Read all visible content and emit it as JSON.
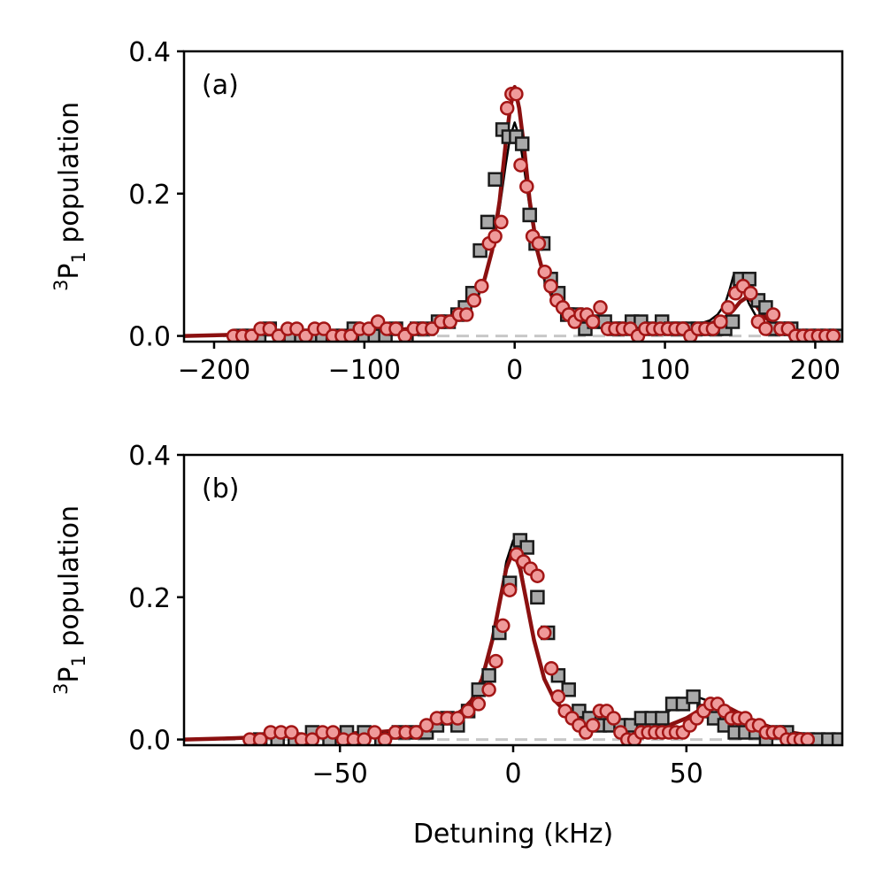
{
  "colors": {
    "red_fill": "#ef9a9a",
    "red_edge": "#a31515",
    "red_line": "#8b1010",
    "gray_fill": "#a9a9a9",
    "gray_edge": "#1a1a1a",
    "black_line": "#000000",
    "baseline": "#c8c8c8"
  },
  "chart_data": [
    {
      "type": "scatter",
      "panel_label": "(a)",
      "ylabel": "3P1 population",
      "ylabel_parts": {
        "sup": "3",
        "main": "P",
        "sub": "1",
        "rest": " population"
      },
      "xlabel": "",
      "xlim": [
        -220,
        218
      ],
      "ylim": [
        -0.008,
        0.4
      ],
      "xticks": [
        -200,
        -100,
        0,
        100,
        200
      ],
      "xtick_labels": [
        "−200",
        "−100",
        "0",
        "100",
        "200"
      ],
      "yticks": [
        0.0,
        0.2,
        0.4
      ],
      "ytick_labels": [
        "0.0",
        "0.2",
        "0.4"
      ],
      "baseline_y": 0.0,
      "series": [
        {
          "name": "gray squares",
          "marker": "square",
          "x": [
            -182,
            -176,
            -170,
            -163,
            -156,
            -149,
            -142,
            -135,
            -128,
            -121,
            -114,
            -107,
            -100,
            -93,
            -86,
            -79,
            -72,
            -65,
            -58,
            -51,
            -44,
            -38,
            -33,
            -28,
            -23,
            -18,
            -13,
            -8,
            -4,
            1,
            5,
            10,
            14,
            19,
            24,
            29,
            35,
            41,
            47,
            53,
            60,
            66,
            72,
            78,
            84,
            91,
            98,
            104,
            110,
            116,
            122,
            128,
            134,
            140,
            145,
            150,
            156,
            162,
            167,
            172,
            178,
            184,
            190,
            196,
            202,
            208,
            214
          ],
          "y": [
            0.0,
            0.0,
            0.0,
            0.01,
            0.0,
            0.0,
            0.0,
            0.0,
            0.0,
            0.0,
            0.0,
            0.01,
            0.0,
            0.0,
            0.0,
            0.01,
            0.0,
            0.01,
            0.01,
            0.02,
            0.02,
            0.03,
            0.04,
            0.06,
            0.12,
            0.16,
            0.22,
            0.29,
            0.28,
            0.28,
            0.27,
            0.17,
            0.13,
            0.13,
            0.08,
            0.06,
            0.03,
            0.03,
            0.01,
            0.02,
            0.02,
            0.01,
            0.01,
            0.02,
            0.02,
            0.01,
            0.02,
            0.01,
            0.01,
            0.01,
            0.01,
            0.01,
            0.01,
            0.01,
            0.02,
            0.08,
            0.08,
            0.05,
            0.04,
            0.01,
            0.01,
            0.01,
            0.0,
            0.0,
            0.0,
            0.0,
            0.0
          ]
        },
        {
          "name": "red circles",
          "marker": "circle",
          "x": [
            -187,
            -181,
            -175,
            -169,
            -163,
            -157,
            -151,
            -145,
            -139,
            -133,
            -127,
            -121,
            -115,
            -109,
            -103,
            -97,
            -91,
            -85,
            -79,
            -73,
            -67,
            -61,
            -55,
            -49,
            -43,
            -37,
            -32,
            -27,
            -22,
            -17,
            -13,
            -9,
            -5,
            -2,
            1,
            4,
            8,
            12,
            16,
            20,
            24,
            28,
            32,
            36,
            40,
            44,
            48,
            52,
            57,
            62,
            67,
            72,
            77,
            82,
            87,
            92,
            97,
            102,
            107,
            112,
            117,
            122,
            127,
            132,
            137,
            142,
            147,
            152,
            157,
            162,
            167,
            172,
            177,
            182,
            187,
            192,
            197,
            202,
            207,
            212
          ],
          "y": [
            0.0,
            0.0,
            0.0,
            0.01,
            0.01,
            0.0,
            0.01,
            0.01,
            0.0,
            0.01,
            0.01,
            0.0,
            0.0,
            0.0,
            0.01,
            0.01,
            0.02,
            0.01,
            0.01,
            0.0,
            0.01,
            0.01,
            0.01,
            0.02,
            0.02,
            0.03,
            0.03,
            0.05,
            0.07,
            0.13,
            0.14,
            0.16,
            0.32,
            0.34,
            0.34,
            0.24,
            0.21,
            0.14,
            0.13,
            0.09,
            0.07,
            0.05,
            0.04,
            0.03,
            0.02,
            0.03,
            0.03,
            0.02,
            0.04,
            0.01,
            0.01,
            0.01,
            0.01,
            0.0,
            0.01,
            0.01,
            0.01,
            0.01,
            0.01,
            0.01,
            0.0,
            0.01,
            0.01,
            0.01,
            0.02,
            0.04,
            0.06,
            0.07,
            0.06,
            0.02,
            0.01,
            0.03,
            0.01,
            0.01,
            0.0,
            0.0,
            0.0,
            0.0,
            0.0,
            0.0
          ]
        }
      ],
      "fits": [
        {
          "name": "black fit",
          "x": [
            -220,
            -180,
            -150,
            -120,
            -100,
            -80,
            -60,
            -50,
            -40,
            -30,
            -25,
            -20,
            -15,
            -10,
            -6,
            -3,
            0,
            3,
            6,
            10,
            15,
            20,
            25,
            30,
            40,
            50,
            60,
            80,
            100,
            110,
            120,
            130,
            135,
            140,
            143,
            146,
            149,
            152,
            156,
            160,
            165,
            170,
            175,
            180,
            190,
            200,
            210,
            218
          ],
          "y": [
            0.0,
            0.002,
            0.003,
            0.005,
            0.006,
            0.008,
            0.012,
            0.017,
            0.025,
            0.04,
            0.055,
            0.08,
            0.12,
            0.18,
            0.24,
            0.28,
            0.3,
            0.28,
            0.24,
            0.18,
            0.12,
            0.08,
            0.055,
            0.04,
            0.025,
            0.017,
            0.014,
            0.012,
            0.011,
            0.012,
            0.015,
            0.022,
            0.03,
            0.045,
            0.065,
            0.088,
            0.085,
            0.065,
            0.045,
            0.03,
            0.02,
            0.014,
            0.01,
            0.007,
            0.005,
            0.003,
            0.002,
            0.002
          ]
        },
        {
          "name": "red fit",
          "x": [
            -220,
            -180,
            -150,
            -120,
            -100,
            -80,
            -60,
            -50,
            -40,
            -30,
            -25,
            -20,
            -15,
            -10,
            -6,
            -3,
            0,
            3,
            6,
            10,
            15,
            20,
            25,
            30,
            40,
            50,
            60,
            80,
            100,
            120,
            130,
            140,
            145,
            150,
            155,
            160,
            165,
            170,
            175,
            180,
            190,
            200,
            210,
            218
          ],
          "y": [
            0.0,
            0.002,
            0.003,
            0.005,
            0.006,
            0.008,
            0.012,
            0.017,
            0.025,
            0.04,
            0.055,
            0.08,
            0.12,
            0.19,
            0.27,
            0.32,
            0.35,
            0.32,
            0.27,
            0.19,
            0.12,
            0.08,
            0.055,
            0.04,
            0.025,
            0.017,
            0.014,
            0.012,
            0.011,
            0.013,
            0.017,
            0.026,
            0.035,
            0.048,
            0.055,
            0.045,
            0.03,
            0.02,
            0.013,
            0.009,
            0.005,
            0.003,
            0.002,
            0.002
          ]
        }
      ]
    },
    {
      "type": "scatter",
      "panel_label": "(b)",
      "ylabel": "3P1 population",
      "ylabel_parts": {
        "sup": "3",
        "main": "P",
        "sub": "1",
        "rest": " population"
      },
      "xlabel": "Detuning (kHz)",
      "xlim": [
        -95,
        95
      ],
      "ylim": [
        -0.008,
        0.4
      ],
      "xticks": [
        -50,
        0,
        50
      ],
      "xtick_labels": [
        "−50",
        "0",
        "50"
      ],
      "yticks": [
        0.0,
        0.2,
        0.4
      ],
      "ytick_labels": [
        "0.0",
        "0.2",
        "0.4"
      ],
      "baseline_y": 0.0,
      "series": [
        {
          "name": "gray squares",
          "marker": "square",
          "x": [
            -73,
            -68,
            -63,
            -58,
            -53,
            -48,
            -43,
            -38,
            -33,
            -29,
            -25,
            -22,
            -19,
            -16,
            -13,
            -10,
            -7,
            -4,
            -1,
            2,
            4,
            7,
            10,
            13,
            16,
            19,
            22,
            25,
            28,
            31,
            34,
            37,
            40,
            43,
            46,
            49,
            52,
            55,
            58,
            61,
            64,
            67,
            70,
            73,
            76,
            79,
            82,
            85,
            88,
            91,
            94
          ],
          "y": [
            0.0,
            0.0,
            0.0,
            0.01,
            0.0,
            0.01,
            0.01,
            0.0,
            0.01,
            0.01,
            0.01,
            0.02,
            0.03,
            0.02,
            0.04,
            0.07,
            0.09,
            0.15,
            0.22,
            0.28,
            0.27,
            0.2,
            0.15,
            0.09,
            0.07,
            0.04,
            0.03,
            0.02,
            0.02,
            0.02,
            0.02,
            0.03,
            0.03,
            0.03,
            0.05,
            0.05,
            0.06,
            0.04,
            0.03,
            0.02,
            0.01,
            0.01,
            0.01,
            0.0,
            0.01,
            0.01,
            0.0,
            0.0,
            0.0,
            0.0,
            0.0
          ]
        },
        {
          "name": "red circles",
          "marker": "circle",
          "x": [
            -76,
            -73,
            -70,
            -67,
            -64,
            -61,
            -58,
            -55,
            -52,
            -49,
            -46,
            -43,
            -40,
            -37,
            -34,
            -31,
            -28,
            -25,
            -22,
            -19,
            -16,
            -13,
            -10,
            -7,
            -5,
            -3,
            -1,
            1,
            3,
            5,
            7,
            9,
            11,
            13,
            15,
            17,
            19,
            21,
            23,
            25,
            27,
            29,
            31,
            33,
            35,
            37,
            39,
            41,
            43,
            45,
            47,
            49,
            51,
            53,
            55,
            57,
            59,
            61,
            63,
            65,
            67,
            69,
            71,
            73,
            75,
            77,
            79,
            81,
            83,
            85
          ],
          "y": [
            0.0,
            0.0,
            0.01,
            0.01,
            0.01,
            0.0,
            0.0,
            0.01,
            0.01,
            0.0,
            0.0,
            0.0,
            0.01,
            0.0,
            0.01,
            0.01,
            0.01,
            0.02,
            0.03,
            0.03,
            0.03,
            0.04,
            0.05,
            0.07,
            0.11,
            0.16,
            0.21,
            0.26,
            0.25,
            0.24,
            0.23,
            0.15,
            0.1,
            0.06,
            0.04,
            0.03,
            0.02,
            0.01,
            0.02,
            0.04,
            0.04,
            0.03,
            0.01,
            0.0,
            0.0,
            0.01,
            0.01,
            0.01,
            0.01,
            0.01,
            0.01,
            0.01,
            0.02,
            0.03,
            0.04,
            0.05,
            0.05,
            0.04,
            0.03,
            0.03,
            0.03,
            0.02,
            0.02,
            0.01,
            0.01,
            0.01,
            0.0,
            0.0,
            0.0,
            0.0
          ]
        }
      ],
      "fits": [
        {
          "name": "black fit",
          "x": [
            -95,
            -80,
            -70,
            -60,
            -50,
            -40,
            -30,
            -25,
            -20,
            -15,
            -12,
            -9,
            -6,
            -4,
            -2,
            0,
            2,
            4,
            6,
            9,
            12,
            15,
            20,
            25,
            30,
            35,
            40,
            45,
            50,
            53,
            56,
            60,
            65,
            70,
            75,
            80,
            85,
            90,
            95
          ],
          "y": [
            0.0,
            0.002,
            0.004,
            0.006,
            0.008,
            0.01,
            0.014,
            0.018,
            0.025,
            0.04,
            0.055,
            0.085,
            0.14,
            0.19,
            0.25,
            0.28,
            0.25,
            0.19,
            0.14,
            0.085,
            0.055,
            0.04,
            0.028,
            0.022,
            0.02,
            0.022,
            0.028,
            0.04,
            0.055,
            0.06,
            0.055,
            0.04,
            0.025,
            0.015,
            0.01,
            0.006,
            0.004,
            0.002,
            0.001
          ]
        },
        {
          "name": "red fit",
          "x": [
            -95,
            -80,
            -70,
            -60,
            -50,
            -40,
            -30,
            -25,
            -20,
            -15,
            -12,
            -9,
            -6,
            -4,
            -2,
            0,
            2,
            4,
            6,
            9,
            12,
            15,
            20,
            25,
            30,
            35,
            40,
            45,
            50,
            55,
            58,
            62,
            66,
            70,
            75,
            80,
            85,
            90,
            95
          ],
          "y": [
            0.0,
            0.002,
            0.004,
            0.006,
            0.008,
            0.01,
            0.014,
            0.018,
            0.025,
            0.04,
            0.055,
            0.085,
            0.14,
            0.19,
            0.24,
            0.265,
            0.24,
            0.19,
            0.14,
            0.085,
            0.055,
            0.04,
            0.025,
            0.018,
            0.014,
            0.013,
            0.015,
            0.02,
            0.03,
            0.045,
            0.05,
            0.045,
            0.035,
            0.025,
            0.016,
            0.01,
            0.006,
            0.003,
            0.001
          ]
        }
      ]
    }
  ]
}
